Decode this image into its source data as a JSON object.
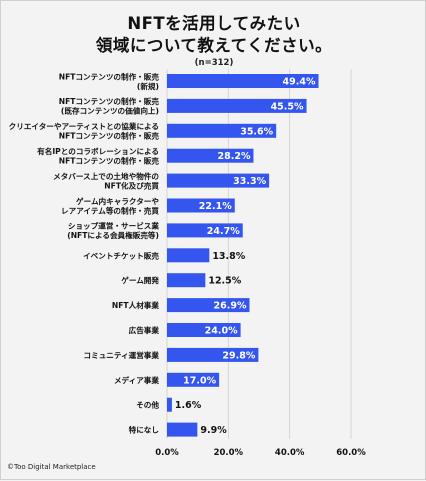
{
  "header": {
    "title_line1": "NFTを活用してみたい",
    "title_line2": "領域について教えてください。",
    "sample_size": "(n=312)"
  },
  "footer": {
    "copyright": "©Too Digital Marketplace"
  },
  "colors": {
    "bar": "#3556ee",
    "bar_label_inside": "#ffffff",
    "bar_label_outside": "#111111",
    "grid": "#cfcfcf",
    "background": "#f3f3f3"
  },
  "chart_data": {
    "type": "bar",
    "orientation": "horizontal",
    "title": "NFTを活用してみたい 領域について教えてください。",
    "subtitle": "(n=312)",
    "categories": [
      [
        "NFTコンテンツの制作・販売",
        "(新規)"
      ],
      [
        "NFTコンテンツの制作・販売",
        "(既存コンテンツの価値向上)"
      ],
      [
        "クリエイターやアーティストとの協業による",
        "NFTコンテンツの制作・販売"
      ],
      [
        "有名IPとのコラボレーションによる",
        "NFTコンテンツの制作・販売"
      ],
      [
        "メタバース上での土地や物件の",
        "NFT化及び売買"
      ],
      [
        "ゲーム内キャラクターや",
        "レアアイテム等の制作・売買"
      ],
      [
        "ショップ運営・サービス業",
        "(NFTによる会員権販売等)"
      ],
      [
        "イベントチケット販売"
      ],
      [
        "ゲーム開発"
      ],
      [
        "NFT人材事業"
      ],
      [
        "広告事業"
      ],
      [
        "コミュニティ運営事業"
      ],
      [
        "メディア事業"
      ],
      [
        "その他"
      ],
      [
        "特になし"
      ]
    ],
    "values": [
      49.4,
      45.5,
      35.6,
      28.2,
      33.3,
      22.1,
      24.7,
      13.8,
      12.5,
      26.9,
      24.0,
      29.8,
      17.0,
      1.6,
      9.9
    ],
    "value_labels": [
      "49.4%",
      "45.5%",
      "35.6%",
      "28.2%",
      "33.3%",
      "22.1%",
      "24.7%",
      "13.8%",
      "12.5%",
      "26.9%",
      "24.0%",
      "29.8%",
      "17.0%",
      "1.6%",
      "9.9%"
    ],
    "x_ticks": [
      0,
      20,
      40,
      60
    ],
    "x_tick_labels": [
      "0.0%",
      "20.0%",
      "40.0%",
      "60.0%"
    ],
    "xlim": [
      0,
      60
    ],
    "labels_inside_min": 15,
    "grid": true,
    "legend": "none"
  }
}
